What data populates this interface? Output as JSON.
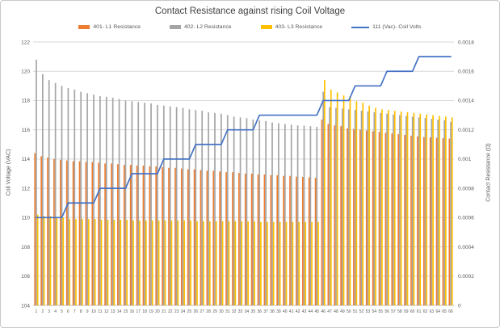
{
  "chart_data": {
    "type": "bar",
    "title": "Contact Resistance against rising Coil Voltage",
    "legend_position": "top",
    "grid": true,
    "left_axis": {
      "title": "Coil Voltage (VAC)",
      "min": 104,
      "max": 122,
      "step": 2,
      "ticks": [
        "122",
        "120",
        "118",
        "116",
        "114",
        "112",
        "110",
        "108",
        "106",
        "104"
      ]
    },
    "right_axis": {
      "title": "Contact Resistance (Ω)",
      "min": 0,
      "max": 0.0018,
      "step": 0.0002,
      "ticks": [
        "0.0018",
        "0.0016",
        "0.0014",
        "0.0012",
        "0.001",
        "0.0008",
        "0.0006",
        "0.0004",
        "0.0002",
        "0"
      ]
    },
    "categories": [
      "1",
      "2",
      "3",
      "4",
      "5",
      "6",
      "7",
      "8",
      "9",
      "10",
      "11",
      "12",
      "13",
      "14",
      "15",
      "16",
      "17",
      "18",
      "19",
      "20",
      "21",
      "22",
      "23",
      "24",
      "25",
      "26",
      "27",
      "28",
      "29",
      "30",
      "31",
      "32",
      "33",
      "34",
      "35",
      "36",
      "37",
      "38",
      "39",
      "40",
      "41",
      "42",
      "43",
      "44",
      "45",
      "46",
      "47",
      "48",
      "49",
      "50",
      "51",
      "52",
      "53",
      "54",
      "55",
      "56",
      "57",
      "58",
      "59",
      "60",
      "61",
      "62",
      "63",
      "64",
      "65",
      "66"
    ],
    "series": [
      {
        "name": "401- L1 Resistance",
        "type": "bar",
        "axis": "right",
        "color": "#ED7D31",
        "values": [
          0.00104,
          0.00102,
          0.00101,
          0.001,
          0.000995,
          0.00099,
          0.000985,
          0.000985,
          0.00098,
          0.00098,
          0.000975,
          0.00097,
          0.00097,
          0.000965,
          0.00096,
          0.00096,
          0.000955,
          0.000955,
          0.00095,
          0.00095,
          0.000945,
          0.00094,
          0.00094,
          0.000935,
          0.00093,
          0.00093,
          0.000925,
          0.00092,
          0.00092,
          0.000915,
          0.00091,
          0.00091,
          0.000905,
          0.0009,
          0.0009,
          0.000895,
          0.000895,
          0.00089,
          0.00089,
          0.000885,
          0.000885,
          0.00088,
          0.000878,
          0.000875,
          0.000872,
          0.00127,
          0.00124,
          0.00123,
          0.001225,
          0.00121,
          0.001205,
          0.0012,
          0.001195,
          0.00119,
          0.001185,
          0.00118,
          0.001175,
          0.00117,
          0.001165,
          0.00116,
          0.001155,
          0.00115,
          0.001148,
          0.001145,
          0.001142,
          0.00114
        ]
      },
      {
        "name": "402- L2 Resistance",
        "type": "bar",
        "axis": "right",
        "color": "#A5A5A5",
        "values": [
          0.00168,
          0.00158,
          0.00154,
          0.00152,
          0.0015,
          0.001485,
          0.001475,
          0.00146,
          0.00145,
          0.00144,
          0.00143,
          0.001425,
          0.00142,
          0.00141,
          0.0014,
          0.001395,
          0.00139,
          0.001385,
          0.00138,
          0.00137,
          0.001365,
          0.00136,
          0.001355,
          0.00135,
          0.00134,
          0.001335,
          0.00133,
          0.00132,
          0.001315,
          0.00131,
          0.0013,
          0.00129,
          0.001285,
          0.00128,
          0.00127,
          0.001265,
          0.00126,
          0.00125,
          0.001245,
          0.00124,
          0.001235,
          0.00123,
          0.001228,
          0.001225,
          0.00122,
          0.00146,
          0.001355,
          0.00135,
          0.001345,
          0.00134,
          0.001335,
          0.00133,
          0.001325,
          0.00132,
          0.001315,
          0.00131,
          0.001305,
          0.0013,
          0.001295,
          0.00129,
          0.001285,
          0.00128,
          0.001275,
          0.00127,
          0.001265,
          0.001255
        ]
      },
      {
        "name": "403- L3 Resistance",
        "type": "bar",
        "axis": "right",
        "color": "#FFC000",
        "values": [
          0.00062,
          0.00061,
          0.00061,
          0.0006,
          0.0006,
          0.00059,
          0.00059,
          0.00059,
          0.00059,
          0.00059,
          0.000585,
          0.000585,
          0.000585,
          0.000585,
          0.000585,
          0.00058,
          0.00058,
          0.00058,
          0.00058,
          0.00058,
          0.00058,
          0.00058,
          0.00058,
          0.00058,
          0.00058,
          0.000575,
          0.000575,
          0.000575,
          0.000575,
          0.000575,
          0.000575,
          0.000575,
          0.000575,
          0.000575,
          0.000575,
          0.00057,
          0.00057,
          0.00057,
          0.00057,
          0.00057,
          0.00057,
          0.00057,
          0.00057,
          0.00057,
          0.00057,
          0.00154,
          0.001475,
          0.001455,
          0.001435,
          0.00143,
          0.001395,
          0.001385,
          0.001365,
          0.00135,
          0.00134,
          0.001335,
          0.00133,
          0.001325,
          0.00132,
          0.001315,
          0.00131,
          0.001305,
          0.0013,
          0.001295,
          0.00129,
          0.001285
        ]
      },
      {
        "name": "111 (Vac)- Coil Volts",
        "type": "line",
        "axis": "left",
        "color": "#4472C4",
        "values": [
          110,
          110,
          110,
          110,
          110,
          111,
          111,
          111,
          111,
          111,
          112,
          112,
          112,
          112,
          112,
          113,
          113,
          113,
          113,
          113,
          114,
          114,
          114,
          114,
          114,
          115,
          115,
          115,
          115,
          115,
          116,
          116,
          116,
          116,
          116,
          117,
          117,
          117,
          117,
          117,
          117,
          117,
          117,
          117,
          117,
          118,
          118,
          118,
          118,
          118,
          119,
          119,
          119,
          119,
          119,
          120,
          120,
          120,
          120,
          120,
          121,
          121,
          121,
          121,
          121,
          121
        ]
      }
    ],
    "colors": {
      "grid": "#D9D9D9",
      "baseline": "#BFBFBF",
      "tick_text": "#595959",
      "title_text": "#3F3F3F"
    }
  }
}
